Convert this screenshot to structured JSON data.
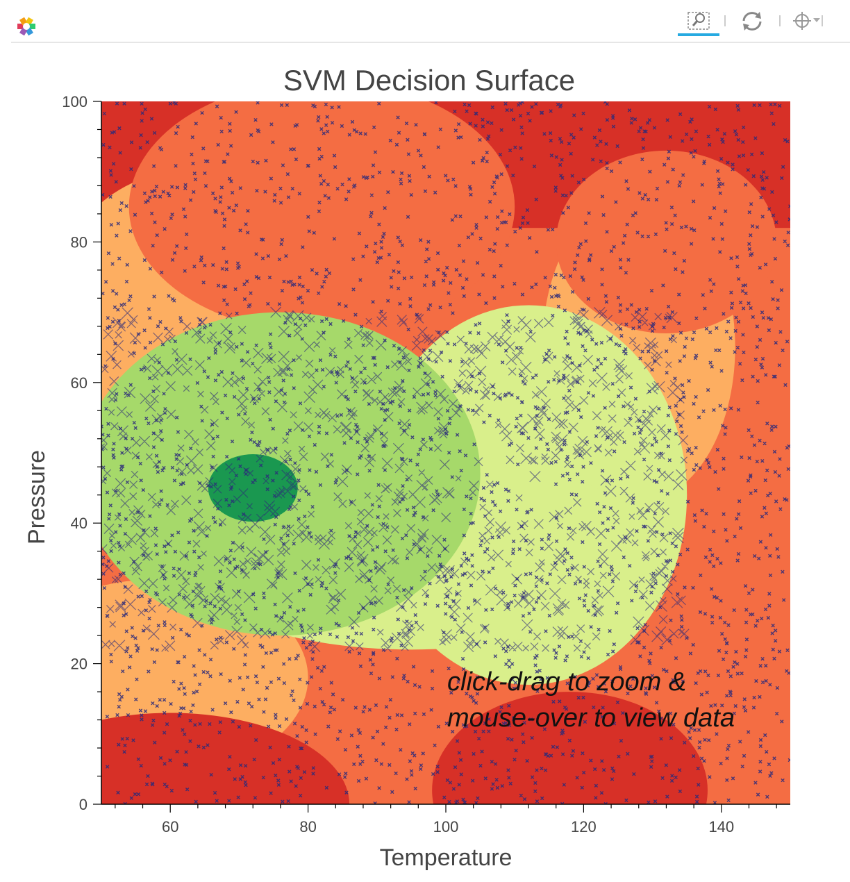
{
  "toolbar": {
    "logo_icon": "bokeh-logo-icon",
    "tools": [
      {
        "name": "box-zoom-icon",
        "active": true
      },
      {
        "name": "reset-icon",
        "active": false
      },
      {
        "name": "crosshair-icon",
        "active": false
      }
    ],
    "accent_color": "#26aae1"
  },
  "chart_data": {
    "type": "heatmap",
    "title": "SVM Decision Surface",
    "xlabel": "Temperature",
    "ylabel": "Pressure",
    "xlim": [
      50,
      150
    ],
    "ylim": [
      0,
      100
    ],
    "xticks": [
      "60",
      "80",
      "100",
      "120",
      "140"
    ],
    "yticks": [
      "0",
      "20",
      "40",
      "60",
      "80",
      "100"
    ],
    "annotation": [
      "click-drag to zoom &",
      "mouse-over to view data"
    ],
    "colormap": [
      "#d73027",
      "#f46d43",
      "#fdae61",
      "#d9ef8b",
      "#a6d96a",
      "#1a9850"
    ],
    "point_color": "#2b2a7a",
    "regions": [
      {
        "level": 2,
        "shape": "ellipse",
        "cx": 62,
        "cy": 68,
        "rx": 20,
        "ry": 22
      },
      {
        "level": 2,
        "shape": "ellipse",
        "cx": 128,
        "cy": 65,
        "rx": 14,
        "ry": 22
      },
      {
        "level": 2,
        "shape": "ellipse",
        "cx": 58,
        "cy": 18,
        "rx": 22,
        "ry": 14
      },
      {
        "level": 1,
        "shape": "ellipse",
        "cx": 82,
        "cy": 85,
        "rx": 28,
        "ry": 18
      },
      {
        "level": 1,
        "shape": "ellipse",
        "cx": 132,
        "cy": 80,
        "rx": 16,
        "ry": 13
      },
      {
        "level": 0,
        "shape": "ellipse",
        "cx": 118,
        "cy": 2,
        "rx": 20,
        "ry": 14
      },
      {
        "level": 0,
        "shape": "ellipse",
        "cx": 60,
        "cy": 0,
        "rx": 26,
        "ry": 13
      },
      {
        "level": 3,
        "shape": "ellipse",
        "cx": 112,
        "cy": 44,
        "rx": 23,
        "ry": 27
      },
      {
        "level": 3,
        "shape": "ellipse",
        "cx": 95,
        "cy": 36,
        "rx": 35,
        "ry": 14
      },
      {
        "level": 4,
        "shape": "ellipse",
        "cx": 76,
        "cy": 47,
        "rx": 29,
        "ry": 23
      },
      {
        "level": 5,
        "shape": "ellipse",
        "cx": 72,
        "cy": 45,
        "rx": 6.5,
        "ry": 4.8
      }
    ],
    "background_band": [
      {
        "level": 0,
        "ymin": 0,
        "ymax": 100
      }
    ]
  }
}
